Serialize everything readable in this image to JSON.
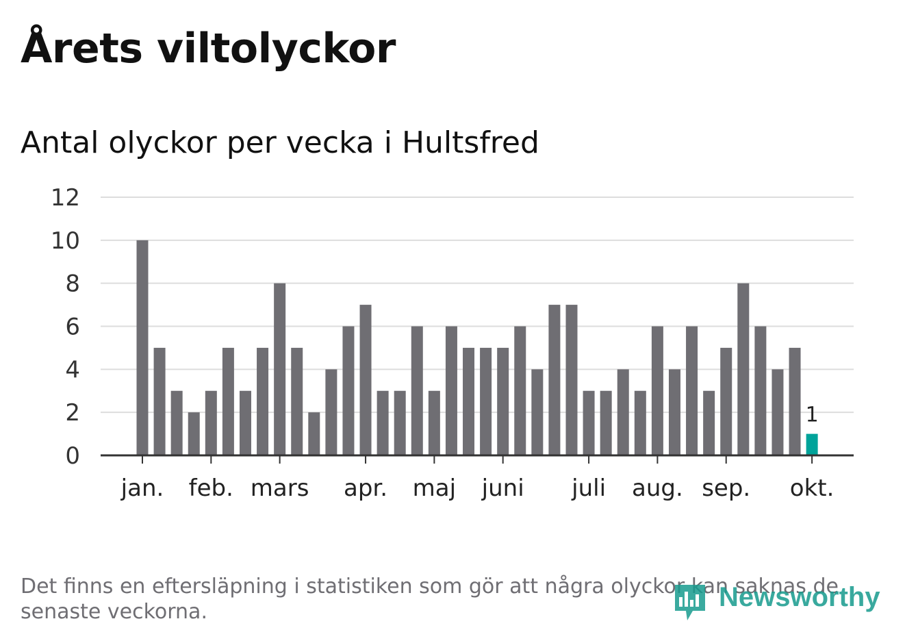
{
  "title": "Årets viltolyckor",
  "subtitle": "Antal olyckor per vecka i Hultsfred",
  "footnote": "Det finns en eftersläpning i statistiken som gör att några olyckor kan saknas de senaste veckorna.",
  "brand": {
    "name": "Newsworthy",
    "icon": "bar-chart-speech-icon",
    "color": "#179b8e"
  },
  "chart_data": {
    "type": "bar",
    "title": "Antal olyckor per vecka i Hultsfred",
    "xlabel": "",
    "ylabel": "",
    "ylim": [
      0,
      12
    ],
    "yticks": [
      0,
      2,
      4,
      6,
      8,
      10,
      12
    ],
    "grid": true,
    "legend": "none",
    "colors": {
      "bar": "#6f6e73",
      "highlight": "#00a39a",
      "grid": "#dddddd",
      "axis": "#333333"
    },
    "values": [
      10,
      5,
      3,
      2,
      3,
      5,
      3,
      5,
      8,
      5,
      2,
      4,
      6,
      7,
      3,
      3,
      6,
      3,
      6,
      5,
      5,
      5,
      6,
      4,
      7,
      7,
      3,
      3,
      4,
      3,
      6,
      4,
      6,
      3,
      5,
      8,
      6,
      4,
      5,
      1
    ],
    "highlight_index": 39,
    "data_labels": [
      {
        "index": 39,
        "text": "1"
      }
    ],
    "month_ticks": [
      {
        "label": "jan.",
        "week_index": 0
      },
      {
        "label": "feb.",
        "week_index": 4
      },
      {
        "label": "mars",
        "week_index": 8
      },
      {
        "label": "apr.",
        "week_index": 13
      },
      {
        "label": "maj",
        "week_index": 17
      },
      {
        "label": "juni",
        "week_index": 21
      },
      {
        "label": "juli",
        "week_index": 26
      },
      {
        "label": "aug.",
        "week_index": 30
      },
      {
        "label": "sep.",
        "week_index": 34
      },
      {
        "label": "okt.",
        "week_index": 39
      }
    ]
  }
}
